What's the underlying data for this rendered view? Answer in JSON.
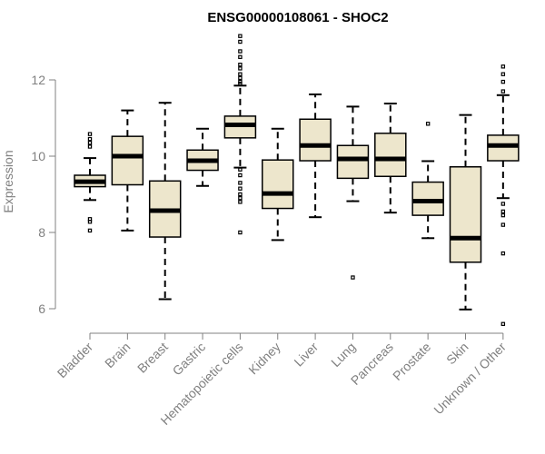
{
  "chart_data": {
    "type": "boxplot",
    "title": "ENSG00000108061 - SHOC2",
    "xlabel": "",
    "ylabel": "Expression",
    "ylim": [
      5.5,
      13.2
    ],
    "yticks": [
      6,
      8,
      10,
      12
    ],
    "grid": false,
    "box_fill": "#ede6cc",
    "outline_color": "#000000",
    "axis_color": "#808080",
    "categories": [
      "Bladder",
      "Brain",
      "Breast",
      "Gastric",
      "Hematopoietic cells",
      "Kidney",
      "Liver",
      "Lung",
      "Pancreas",
      "Prostate",
      "Skin",
      "Unknown / Other"
    ],
    "boxes": [
      {
        "category": "Bladder",
        "whisker_low": 8.85,
        "q1": 9.2,
        "median": 9.33,
        "q3": 9.5,
        "whisker_high": 9.95,
        "outliers": [
          10.58,
          10.45,
          10.35,
          10.25,
          8.35,
          8.28,
          8.05
        ]
      },
      {
        "category": "Brain",
        "whisker_low": 8.05,
        "q1": 9.25,
        "median": 10.0,
        "q3": 10.52,
        "whisker_high": 11.2,
        "outliers": []
      },
      {
        "category": "Breast",
        "whisker_low": 6.25,
        "q1": 7.88,
        "median": 8.57,
        "q3": 9.35,
        "whisker_high": 11.4,
        "outliers": []
      },
      {
        "category": "Gastric",
        "whisker_low": 9.22,
        "q1": 9.63,
        "median": 9.88,
        "q3": 10.16,
        "whisker_high": 10.72,
        "outliers": []
      },
      {
        "category": "Hematopoietic cells",
        "whisker_low": 9.7,
        "q1": 10.48,
        "median": 10.82,
        "q3": 11.05,
        "whisker_high": 11.85,
        "outliers": [
          13.15,
          13.0,
          12.75,
          12.6,
          12.4,
          12.3,
          12.15,
          12.05,
          11.95,
          11.9,
          9.65,
          9.5,
          9.3,
          9.15,
          9.0,
          8.9,
          8.8,
          8.0
        ]
      },
      {
        "category": "Kidney",
        "whisker_low": 7.8,
        "q1": 8.63,
        "median": 9.02,
        "q3": 9.9,
        "whisker_high": 10.72,
        "outliers": []
      },
      {
        "category": "Liver",
        "whisker_low": 8.4,
        "q1": 9.88,
        "median": 10.28,
        "q3": 10.97,
        "whisker_high": 11.62,
        "outliers": []
      },
      {
        "category": "Lung",
        "whisker_low": 8.82,
        "q1": 9.42,
        "median": 9.93,
        "q3": 10.28,
        "whisker_high": 11.3,
        "outliers": [
          6.82
        ]
      },
      {
        "category": "Pancreas",
        "whisker_low": 8.52,
        "q1": 9.47,
        "median": 9.93,
        "q3": 10.6,
        "whisker_high": 11.38,
        "outliers": []
      },
      {
        "category": "Prostate",
        "whisker_low": 7.85,
        "q1": 8.45,
        "median": 8.82,
        "q3": 9.32,
        "whisker_high": 9.87,
        "outliers": [
          10.85
        ]
      },
      {
        "category": "Skin",
        "whisker_low": 5.98,
        "q1": 7.22,
        "median": 7.85,
        "q3": 9.72,
        "whisker_high": 11.08,
        "outliers": []
      },
      {
        "category": "Unknown / Other",
        "whisker_low": 8.9,
        "q1": 9.88,
        "median": 10.28,
        "q3": 10.55,
        "whisker_high": 11.6,
        "outliers": [
          12.35,
          12.15,
          11.95,
          11.7,
          8.75,
          8.55,
          8.45,
          8.2,
          7.45,
          5.6
        ]
      }
    ]
  }
}
